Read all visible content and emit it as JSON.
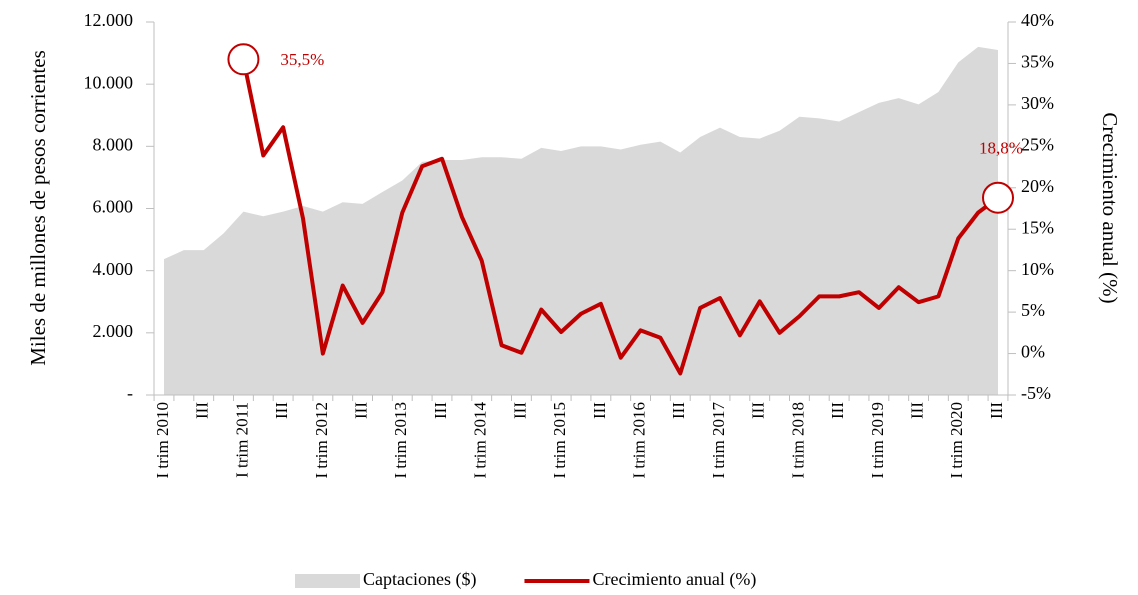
{
  "chart_data": {
    "type": "area_line",
    "categories": [
      "I trim 2010",
      null,
      "III",
      null,
      "I trim 2011",
      null,
      "III",
      null,
      "I trim 2012",
      null,
      "III",
      null,
      "I trim 2013",
      null,
      "III",
      null,
      "I trim 2014",
      null,
      "III",
      null,
      "I trim 2015",
      null,
      "III",
      null,
      "I trim 2016",
      null,
      "III",
      null,
      "I trim 2017",
      null,
      "III",
      null,
      "I trim 2018",
      null,
      "III",
      null,
      "I trim 2019",
      null,
      "III",
      null,
      "I trim 2020",
      null,
      "III"
    ],
    "series": [
      {
        "name": "Captaciones ($)",
        "type": "area",
        "color": "#d9d9d9",
        "values": [
          4370,
          4660,
          4660,
          5200,
          5900,
          5750,
          5900,
          6080,
          5900,
          6200,
          6150,
          6530,
          6900,
          7500,
          7560,
          7560,
          7650,
          7650,
          7600,
          7950,
          7850,
          8000,
          8000,
          7900,
          8050,
          8150,
          7800,
          8300,
          8600,
          8300,
          8250,
          8500,
          8950,
          8900,
          8800,
          9100,
          9400,
          9550,
          9350,
          9750,
          10700,
          11200,
          11100
        ]
      },
      {
        "name": "Crecimiento anual (%)",
        "type": "line",
        "axis": "y2",
        "color": "#c00000",
        "values": [
          null,
          null,
          null,
          null,
          35.5,
          23.9,
          27.3,
          16.3,
          0,
          8.2,
          3.7,
          7.4,
          17.0,
          22.6,
          23.5,
          16.5,
          11.2,
          1.0,
          0.1,
          5.3,
          2.6,
          4.8,
          6.0,
          -0.5,
          2.8,
          1.9,
          -2.4,
          5.5,
          6.7,
          2.2,
          6.3,
          2.5,
          4.5,
          6.9,
          6.9,
          7.4,
          5.5,
          8.0,
          6.2,
          6.9,
          13.9,
          17.0,
          18.8
        ],
        "value_labels": [
          null,
          null,
          null,
          null,
          "35,5%",
          null,
          null,
          null,
          null,
          null,
          null,
          null,
          null,
          null,
          null,
          null,
          null,
          null,
          null,
          null,
          null,
          null,
          null,
          null,
          null,
          null,
          null,
          null,
          null,
          null,
          null,
          null,
          null,
          null,
          null,
          null,
          null,
          null,
          null,
          null,
          null,
          null,
          "18,8%"
        ]
      }
    ],
    "ylabel": "Miles de millones de pesos corrientes",
    "y2label": "Crecimiento anual (%)",
    "ylim": [
      0,
      12000
    ],
    "yticks": [
      {
        "value": 0,
        "label": "-"
      },
      {
        "value": 2000,
        "label": "2.000"
      },
      {
        "value": 4000,
        "label": "4.000"
      },
      {
        "value": 6000,
        "label": "6.000"
      },
      {
        "value": 8000,
        "label": "8.000"
      },
      {
        "value": 10000,
        "label": "10.000"
      },
      {
        "value": 12000,
        "label": "12.000"
      }
    ],
    "y2lim": [
      -5,
      40
    ],
    "y2ticks": [
      {
        "value": -5,
        "label": "-5%"
      },
      {
        "value": 0,
        "label": "0%"
      },
      {
        "value": 5,
        "label": "5%"
      },
      {
        "value": 10,
        "label": "10%"
      },
      {
        "value": 15,
        "label": "15%"
      },
      {
        "value": 20,
        "label": "20%"
      },
      {
        "value": 25,
        "label": "25%"
      },
      {
        "value": 30,
        "label": "30%"
      },
      {
        "value": 35,
        "label": "35%"
      },
      {
        "value": 40,
        "label": "40%"
      }
    ],
    "legend": "bottom"
  }
}
